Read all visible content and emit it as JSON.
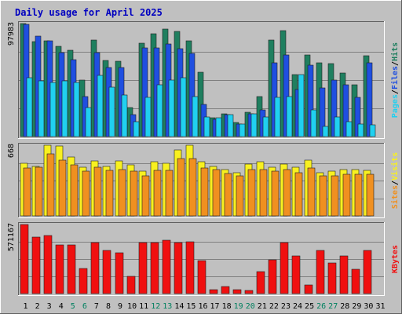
{
  "chart_data": {
    "type": "bar",
    "title": "Daily usage for April 2025",
    "categories": [
      "1",
      "2",
      "3",
      "4",
      "5",
      "6",
      "7",
      "8",
      "9",
      "10",
      "11",
      "12",
      "13",
      "14",
      "15",
      "16",
      "17",
      "18",
      "19",
      "20",
      "21",
      "22",
      "23",
      "24",
      "25",
      "26",
      "27",
      "28",
      "29",
      "30",
      "31"
    ],
    "weekend_days": [
      "5",
      "6",
      "12",
      "13",
      "19",
      "20",
      "26",
      "27"
    ],
    "panels": [
      {
        "name": "hits-files-pages",
        "max_label": "97983",
        "ymax": 97983,
        "legend": [
          "Pages",
          "/",
          "Files",
          "/",
          "Hits"
        ],
        "series": [
          {
            "name": "Hits",
            "color": "#1f7f5f",
            "values": [
              97983,
              82000,
              83000,
              78000,
              75000,
              49000,
              84000,
              66000,
              65000,
              25000,
              81000,
              89000,
              93000,
              91000,
              83000,
              56000,
              16000,
              20000,
              12000,
              21000,
              35000,
              84000,
              92000,
              54000,
              71000,
              64000,
              63000,
              55000,
              45000,
              70000,
              0
            ]
          },
          {
            "name": "Files",
            "color": "#1f4fe0",
            "values": [
              97000,
              87000,
              83000,
              73000,
              67000,
              35000,
              73000,
              60000,
              60000,
              19000,
              77000,
              77000,
              80000,
              76000,
              72000,
              28000,
              15000,
              19000,
              11000,
              20000,
              23000,
              64000,
              71000,
              41000,
              62000,
              42000,
              49000,
              45000,
              34000,
              64000,
              0
            ]
          },
          {
            "name": "Pages",
            "color": "#20d0f0",
            "values": [
              51000,
              48000,
              47000,
              48000,
              47000,
              25000,
              53000,
              43000,
              36000,
              13000,
              34000,
              45000,
              49000,
              51000,
              35000,
              17000,
              16000,
              19000,
              11000,
              20000,
              17000,
              34000,
              35000,
              54000,
              23000,
              9000,
              17000,
              13000,
              11000,
              10000,
              0
            ]
          }
        ]
      },
      {
        "name": "visits-sites",
        "max_label": "668",
        "ymax": 668,
        "legend": [
          "Sites",
          "/",
          "Visits"
        ],
        "series": [
          {
            "name": "Visits",
            "color": "#f8f020",
            "values": [
              500,
              470,
              668,
              660,
              560,
              460,
              520,
              470,
              520,
              480,
              420,
              510,
              500,
              620,
              668,
              510,
              470,
              440,
              410,
              490,
              510,
              460,
              490,
              460,
              530,
              410,
              420,
              440,
              440,
              430,
              0
            ]
          },
          {
            "name": "Sites",
            "color": "#f09020",
            "values": [
              450,
              460,
              590,
              530,
              480,
              420,
              460,
              430,
              440,
              420,
              380,
              430,
              430,
              540,
              540,
              450,
              440,
              400,
              380,
              440,
              440,
              420,
              440,
              410,
              450,
              380,
              380,
              390,
              390,
              390,
              0
            ]
          }
        ]
      },
      {
        "name": "kbytes",
        "max_label": "571167",
        "ymax": 571167,
        "legend": [
          "KBytes"
        ],
        "series": [
          {
            "name": "KBytes",
            "color": "#f01010",
            "values": [
              571167,
              470000,
              480000,
              400000,
              400000,
              210000,
              420000,
              360000,
              340000,
              140000,
              420000,
              420000,
              440000,
              420000,
              430000,
              270000,
              30000,
              60000,
              30000,
              25000,
              180000,
              280000,
              420000,
              310000,
              70000,
              360000,
              250000,
              310000,
              200000,
              360000,
              0
            ]
          }
        ]
      }
    ]
  }
}
